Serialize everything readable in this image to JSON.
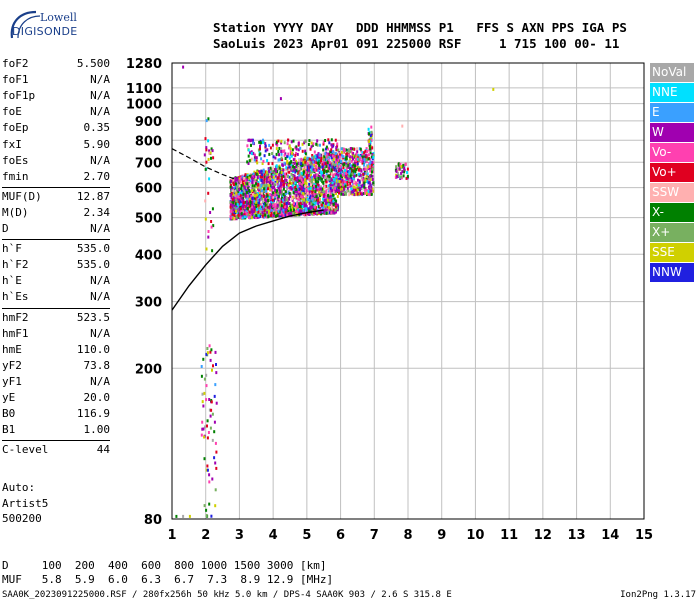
{
  "logo": {
    "line1": "Lowell",
    "line2": "DIGISONDE"
  },
  "header": {
    "line1": "Station YYYY DAY   DDD HHMMSS P1   FFS S AXN PPS IGA PS",
    "line2": "SaoLuis 2023 Apr01 091 225000 RSF     1 715 100 00- 11"
  },
  "parameters": {
    "group1": [
      {
        "name": "foF2",
        "value": "5.500"
      },
      {
        "name": "foF1",
        "value": "N/A"
      },
      {
        "name": "foF1p",
        "value": "N/A"
      },
      {
        "name": "foE",
        "value": "N/A"
      },
      {
        "name": "foEp",
        "value": "0.35"
      },
      {
        "name": "fxI",
        "value": "5.90"
      },
      {
        "name": "foEs",
        "value": "N/A"
      },
      {
        "name": "fmin",
        "value": "2.70"
      }
    ],
    "group2": [
      {
        "name": "MUF(D)",
        "value": "12.87"
      },
      {
        "name": "M(D)",
        "value": "2.34"
      },
      {
        "name": "D",
        "value": "N/A"
      }
    ],
    "group3": [
      {
        "name": "h`F",
        "value": "535.0"
      },
      {
        "name": "h`F2",
        "value": "535.0"
      },
      {
        "name": "h`E",
        "value": "N/A"
      },
      {
        "name": "h`Es",
        "value": "N/A"
      }
    ],
    "group4": [
      {
        "name": "hmF2",
        "value": "523.5"
      },
      {
        "name": "hmF1",
        "value": "N/A"
      },
      {
        "name": "hmE",
        "value": "110.0"
      },
      {
        "name": "yF2",
        "value": "73.8"
      },
      {
        "name": "yF1",
        "value": "N/A"
      },
      {
        "name": "yE",
        "value": "20.0"
      },
      {
        "name": "B0",
        "value": "116.9"
      },
      {
        "name": "B1",
        "value": "1.00"
      }
    ],
    "group5": [
      {
        "name": "C-level",
        "value": "44"
      }
    ]
  },
  "auto": {
    "line1": "Auto:",
    "line2": "Artist5",
    "line3": "500200"
  },
  "legend": [
    {
      "label": "NoVal",
      "color": "#a8a8a8"
    },
    {
      "label": "NNE",
      "color": "#00e0ff"
    },
    {
      "label": "E",
      "color": "#3aa0ff"
    },
    {
      "label": "W",
      "color": "#a000b0"
    },
    {
      "label": "Vo-",
      "color": "#ff40b0"
    },
    {
      "label": "Vo+",
      "color": "#e00020"
    },
    {
      "label": "SSW",
      "color": "#ffb0b0"
    },
    {
      "label": "X-",
      "color": "#008000"
    },
    {
      "label": "X+",
      "color": "#78b060"
    },
    {
      "label": "SSE",
      "color": "#d0d000"
    },
    {
      "label": "NNW",
      "color": "#2020e0"
    }
  ],
  "chart_data": {
    "type": "scatter",
    "title": "",
    "xlabel": "",
    "ylabel": "",
    "xlim": [
      1,
      15
    ],
    "ylim": [
      80,
      1280
    ],
    "y_scale": "log",
    "x_ticks": [
      1,
      2,
      3,
      4,
      5,
      6,
      7,
      8,
      9,
      10,
      11,
      12,
      13,
      14,
      15
    ],
    "y_ticks": [
      80,
      200,
      300,
      400,
      500,
      600,
      700,
      800,
      900,
      1000,
      1100,
      1280
    ],
    "grid": true,
    "legend_position": "right",
    "clusters": [
      {
        "freq_range": [
          2.7,
          5.9
        ],
        "height_range": [
          480,
          800
        ],
        "description": "main F-layer echo traces, mixed directions"
      },
      {
        "freq_range": [
          5.9,
          7.0
        ],
        "height_range": [
          580,
          880
        ]
      },
      {
        "freq_range": [
          7.6,
          8.0
        ],
        "height_range": [
          620,
          710
        ]
      },
      {
        "freq_range": [
          1.9,
          2.3
        ],
        "height_range": [
          80,
          230
        ]
      }
    ],
    "profile_curve": [
      [
        1.0,
        285
      ],
      [
        1.5,
        330
      ],
      [
        2.0,
        375
      ],
      [
        2.5,
        420
      ],
      [
        3.0,
        455
      ],
      [
        3.5,
        475
      ],
      [
        4.0,
        490
      ],
      [
        4.5,
        505
      ],
      [
        5.0,
        515
      ],
      [
        5.5,
        523.5
      ]
    ],
    "dashed_curve": [
      [
        1.0,
        760
      ],
      [
        1.5,
        720
      ],
      [
        2.0,
        680
      ],
      [
        2.5,
        650
      ],
      [
        2.9,
        630
      ]
    ]
  },
  "bottom": {
    "line1": "D     100  200  400  600  800 1000 1500 3000 [km]",
    "line2": "MUF   5.8  5.9  6.0  6.3  6.7  7.3  8.9 12.9 [MHz]"
  },
  "footer": {
    "left": "SAA0K_2023091225000.RSF / 280fx256h 50 kHz 5.0 km / DPS-4 SAA0K 903 / 2.6 S 315.8 E",
    "right": "Ion2Png 1.3.17"
  }
}
